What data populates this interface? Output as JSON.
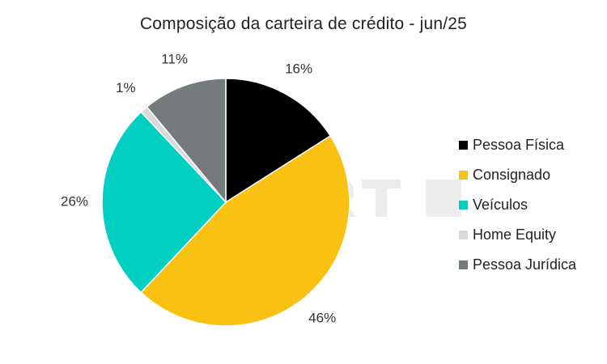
{
  "chart_data": {
    "type": "pie",
    "title": "Composição da carteira de crédito - jun/25",
    "legend_position": "right",
    "slices": [
      {
        "label": "Pessoa Física",
        "value": 16,
        "display": "16%",
        "color": "#000000"
      },
      {
        "label": "Consignado",
        "value": 46,
        "display": "46%",
        "color": "#F9C112"
      },
      {
        "label": "Veículos",
        "value": 26,
        "display": "26%",
        "color": "#00CFC1"
      },
      {
        "label": "Home Equity",
        "value": 1,
        "display": "1%",
        "color": "#D9D9D9"
      },
      {
        "label": "Pessoa Jurídica",
        "value": 11,
        "display": "11%",
        "color": "#757A7C"
      }
    ]
  }
}
